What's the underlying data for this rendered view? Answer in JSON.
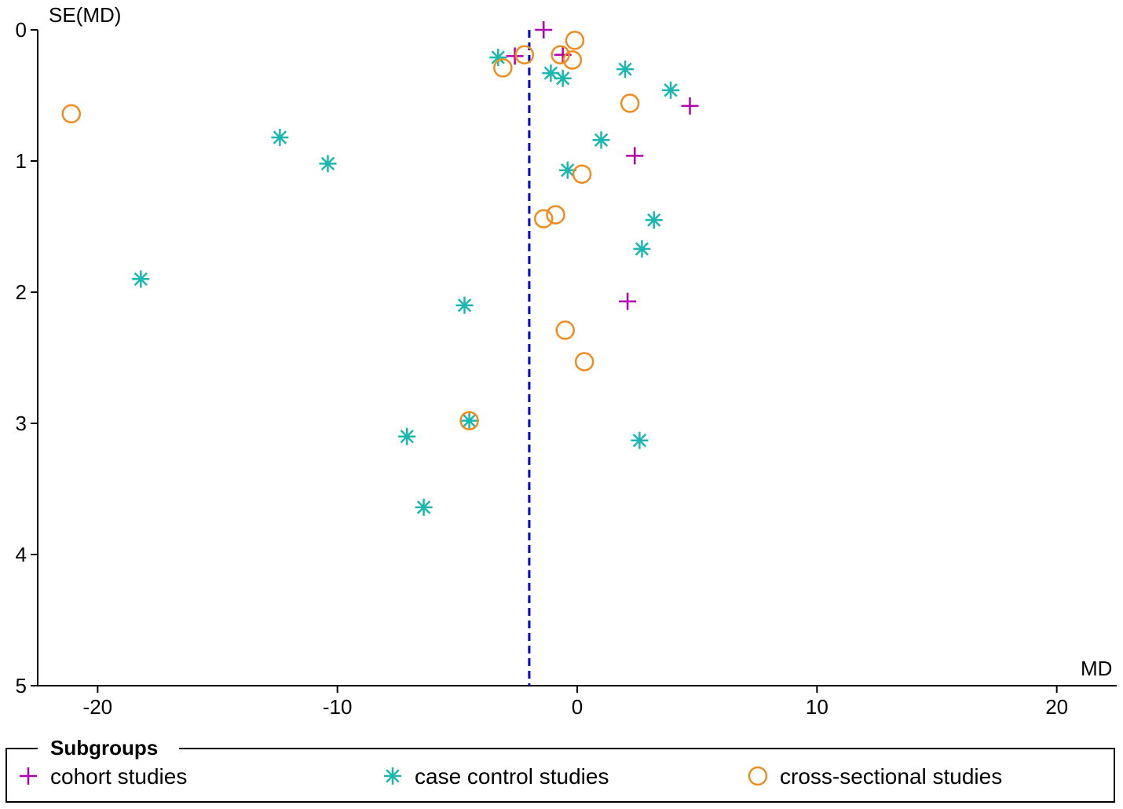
{
  "chart_data": {
    "type": "scatter",
    "title": "",
    "xlabel": "MD",
    "ylabel": "SE(MD)",
    "xlim": [
      -22.5,
      22.5
    ],
    "ylim": [
      0,
      5
    ],
    "y_inverted": true,
    "x_ticks": [
      -20,
      -10,
      0,
      10,
      20
    ],
    "x_tick_labels": [
      "-20",
      "-10",
      "0",
      "10",
      "20"
    ],
    "y_ticks": [
      0,
      1,
      2,
      3,
      4,
      5
    ],
    "y_tick_labels": [
      "0",
      "1",
      "2",
      "3",
      "4",
      "5"
    ],
    "reference_line": {
      "x": -2.0,
      "style": "dashed",
      "color": "#0000cc"
    },
    "legend": {
      "title": "Subgroups",
      "position": "bottom"
    },
    "series": [
      {
        "name": "cohort studies",
        "marker": "plus",
        "color": "#b000b0",
        "points": [
          {
            "x": -1.4,
            "y": 0.0
          },
          {
            "x": -2.6,
            "y": 0.2
          },
          {
            "x": -0.6,
            "y": 0.19
          },
          {
            "x": 4.7,
            "y": 0.58
          },
          {
            "x": 2.4,
            "y": 0.96
          },
          {
            "x": 2.1,
            "y": 2.07
          }
        ]
      },
      {
        "name": "case control studies",
        "marker": "asterisk",
        "color": "#1ab7b0",
        "points": [
          {
            "x": -3.3,
            "y": 0.21
          },
          {
            "x": -1.1,
            "y": 0.33
          },
          {
            "x": -0.6,
            "y": 0.37
          },
          {
            "x": 2.0,
            "y": 0.3
          },
          {
            "x": 3.9,
            "y": 0.46
          },
          {
            "x": -12.4,
            "y": 0.82
          },
          {
            "x": -10.4,
            "y": 1.02
          },
          {
            "x": 1.0,
            "y": 0.84
          },
          {
            "x": -0.4,
            "y": 1.07
          },
          {
            "x": 3.2,
            "y": 1.45
          },
          {
            "x": 2.7,
            "y": 1.67
          },
          {
            "x": -18.2,
            "y": 1.9
          },
          {
            "x": -4.7,
            "y": 2.1
          },
          {
            "x": -4.5,
            "y": 2.98
          },
          {
            "x": -7.1,
            "y": 3.1
          },
          {
            "x": 2.6,
            "y": 3.13
          },
          {
            "x": -6.4,
            "y": 3.64
          }
        ]
      },
      {
        "name": "cross-sectional studies",
        "marker": "circle",
        "color": "#f08c1e",
        "points": [
          {
            "x": -0.1,
            "y": 0.08
          },
          {
            "x": -2.2,
            "y": 0.19
          },
          {
            "x": -0.7,
            "y": 0.19
          },
          {
            "x": -0.2,
            "y": 0.23
          },
          {
            "x": -3.1,
            "y": 0.29
          },
          {
            "x": 2.2,
            "y": 0.56
          },
          {
            "x": -21.1,
            "y": 0.64
          },
          {
            "x": 0.2,
            "y": 1.1
          },
          {
            "x": -0.9,
            "y": 1.41
          },
          {
            "x": -1.4,
            "y": 1.44
          },
          {
            "x": -0.5,
            "y": 2.29
          },
          {
            "x": 0.3,
            "y": 2.53
          },
          {
            "x": -4.5,
            "y": 2.98
          }
        ]
      }
    ]
  }
}
